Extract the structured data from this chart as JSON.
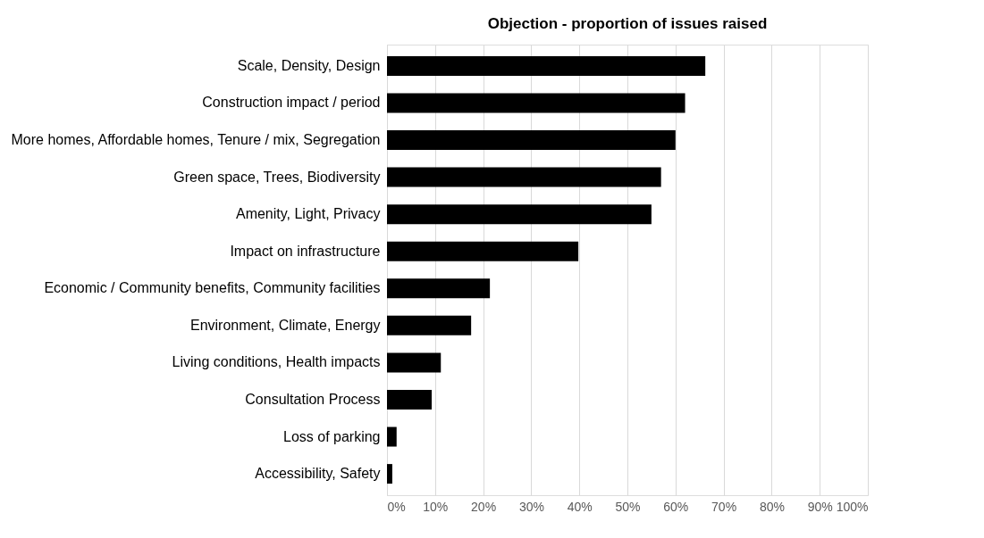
{
  "chart_data": {
    "type": "bar",
    "orientation": "horizontal",
    "title": "Objection - proportion of issues raised",
    "categories": [
      "Scale, Density, Design",
      "Construction impact / period",
      "More homes, Affordable homes, Tenure / mix, Segregation",
      "Green space, Trees, Biodiversity",
      "Amenity, Light, Privacy",
      "Impact on infrastructure",
      "Economic / Community benefits, Community facilities",
      "Environment, Climate, Energy",
      "Living conditions, Health impacts",
      "Consultation Process",
      "Loss of parking",
      "Accessibility, Safety"
    ],
    "values": [
      66.2,
      62,
      60,
      57,
      55,
      39.8,
      21.4,
      17.5,
      11.2,
      9.3,
      2,
      1.1
    ],
    "color": "#000000",
    "xlim": [
      0,
      100
    ],
    "xticks": [
      {
        "value": 0,
        "label": "0%"
      },
      {
        "value": 10,
        "label": "10%"
      },
      {
        "value": 20,
        "label": "20%"
      },
      {
        "value": 30,
        "label": "30%"
      },
      {
        "value": 40,
        "label": "40%"
      },
      {
        "value": 50,
        "label": "50%"
      },
      {
        "value": 60,
        "label": "60%"
      },
      {
        "value": 70,
        "label": "70%"
      },
      {
        "value": 80,
        "label": "80%"
      },
      {
        "value": 90,
        "label": "90%"
      },
      {
        "value": 100,
        "label": "100%"
      }
    ],
    "grid": "x"
  }
}
